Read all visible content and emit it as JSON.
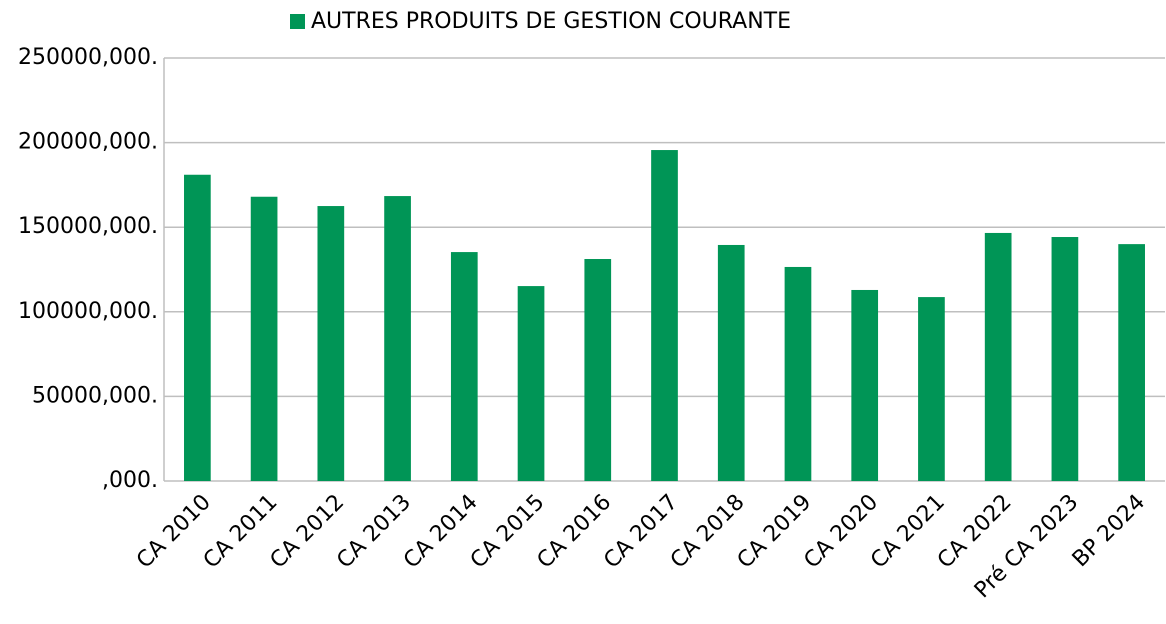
{
  "chart_data": {
    "type": "bar",
    "categories": [
      "CA 2010",
      "CA 2011",
      "CA 2012",
      "CA 2013",
      "CA 2014",
      "CA 2015",
      "CA 2016",
      "CA 2017",
      "CA 2018",
      "CA 2019",
      "CA 2020",
      "CA 2021",
      "CA 2022",
      "Pré CA 2023",
      "BP 2024"
    ],
    "series": [
      {
        "name": "AUTRES PRODUITS DE GESTION COURANTE",
        "color": "#009556",
        "values": [
          181000,
          168000,
          162500,
          168400,
          135300,
          115200,
          131200,
          195600,
          139500,
          126500,
          112900,
          108700,
          146600,
          144200,
          140000
        ]
      }
    ],
    "ylim": [
      0,
      250000
    ],
    "yticks": [
      {
        "value": 0,
        "label": ",000."
      },
      {
        "value": 50000,
        "label": "50000,000."
      },
      {
        "value": 100000,
        "label": "100000,000."
      },
      {
        "value": 150000,
        "label": "150000,000."
      },
      {
        "value": 200000,
        "label": "200000,000."
      },
      {
        "value": 250000,
        "label": "250000,000."
      }
    ],
    "grid": true,
    "legend": "top"
  }
}
